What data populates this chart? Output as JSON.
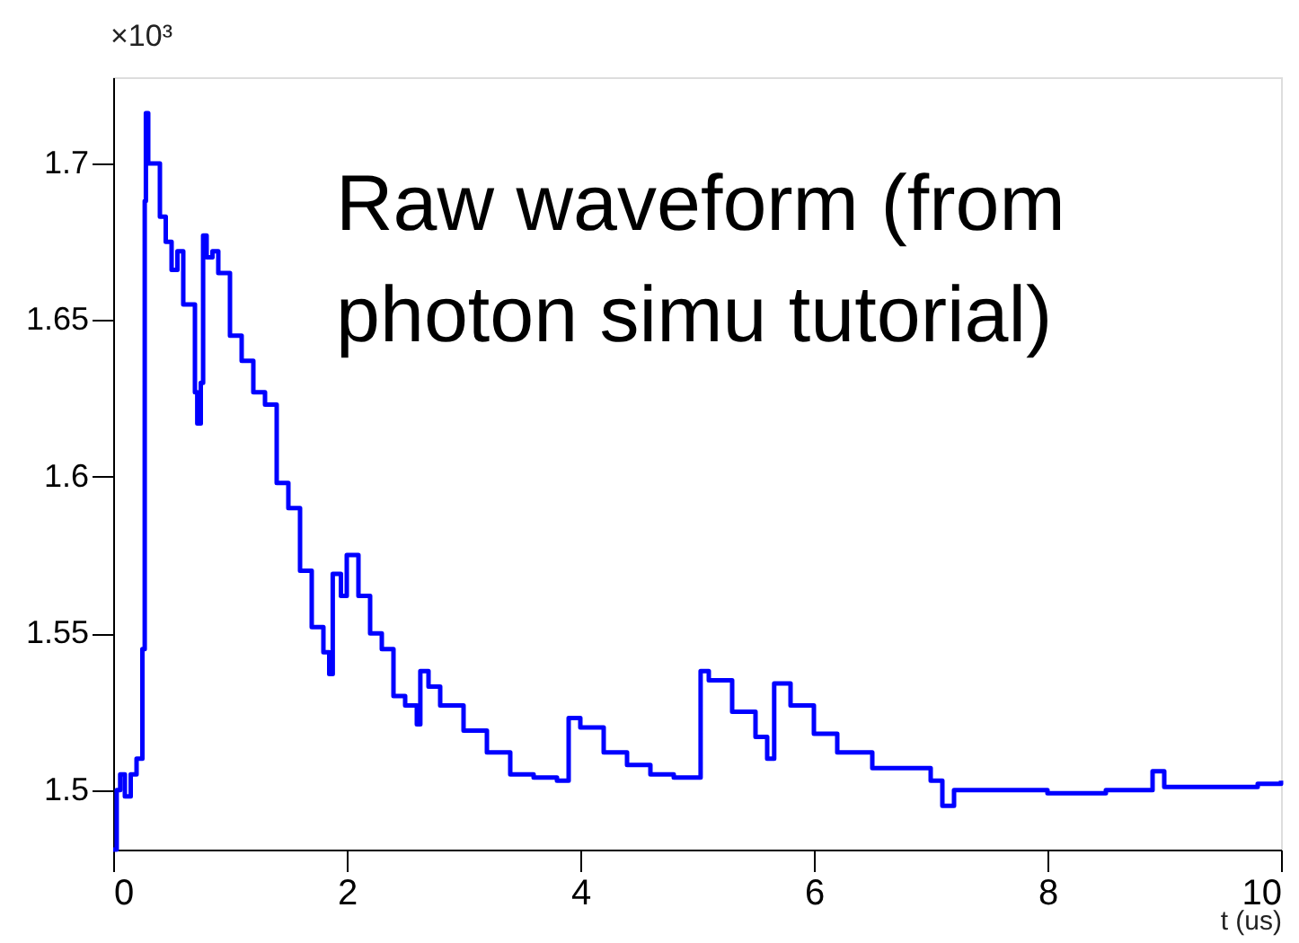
{
  "chart_data": {
    "type": "step",
    "xlabel": "t (us)",
    "ylabel": "×10³",
    "annotations": [
      "Raw waveform (from photon simu tutorial)"
    ],
    "x": [
      0,
      0.03,
      0.06,
      0.1,
      0.15,
      0.2,
      0.25,
      0.27,
      0.28,
      0.3,
      0.35,
      0.4,
      0.45,
      0.5,
      0.55,
      0.6,
      0.7,
      0.72,
      0.75,
      0.77,
      0.8,
      0.85,
      0.9,
      1.0,
      1.1,
      1.2,
      1.3,
      1.4,
      1.5,
      1.6,
      1.7,
      1.8,
      1.85,
      1.88,
      1.95,
      2.0,
      2.1,
      2.2,
      2.3,
      2.4,
      2.5,
      2.6,
      2.63,
      2.7,
      2.8,
      3.0,
      3.2,
      3.4,
      3.6,
      3.8,
      3.9,
      4.0,
      4.2,
      4.4,
      4.6,
      4.8,
      5.03,
      5.1,
      5.3,
      5.5,
      5.6,
      5.66,
      5.8,
      6.0,
      6.2,
      6.5,
      7.0,
      7.1,
      7.2,
      7.5,
      8.0,
      8.5,
      8.9,
      9.0,
      9.5,
      9.8,
      10.0
    ],
    "series": [
      {
        "color": "#0000ff",
        "values": [
          1.481,
          1.5,
          1.505,
          1.498,
          1.505,
          1.51,
          1.545,
          1.688,
          1.716,
          1.7,
          1.7,
          1.683,
          1.675,
          1.666,
          1.672,
          1.655,
          1.627,
          1.617,
          1.63,
          1.677,
          1.67,
          1.672,
          1.665,
          1.645,
          1.637,
          1.627,
          1.623,
          1.598,
          1.59,
          1.57,
          1.552,
          1.544,
          1.537,
          1.569,
          1.562,
          1.575,
          1.562,
          1.55,
          1.545,
          1.53,
          1.527,
          1.521,
          1.538,
          1.533,
          1.527,
          1.519,
          1.512,
          1.505,
          1.504,
          1.503,
          1.523,
          1.52,
          1.512,
          1.508,
          1.505,
          1.504,
          1.538,
          1.535,
          1.525,
          1.517,
          1.51,
          1.534,
          1.527,
          1.518,
          1.512,
          1.507,
          1.503,
          1.495,
          1.5,
          1.5,
          1.499,
          1.5,
          1.506,
          1.501,
          1.501,
          1.502,
          1.503
        ]
      }
    ],
    "xlim": [
      0,
      10
    ],
    "xticks": [
      0,
      2,
      4,
      6,
      8,
      10
    ],
    "ylim": [
      1.481,
      1.7275
    ],
    "yticks": [
      1.5,
      1.55,
      1.6,
      1.65,
      1.7
    ],
    "grid": false,
    "marker": "none",
    "line_style": "solid"
  }
}
